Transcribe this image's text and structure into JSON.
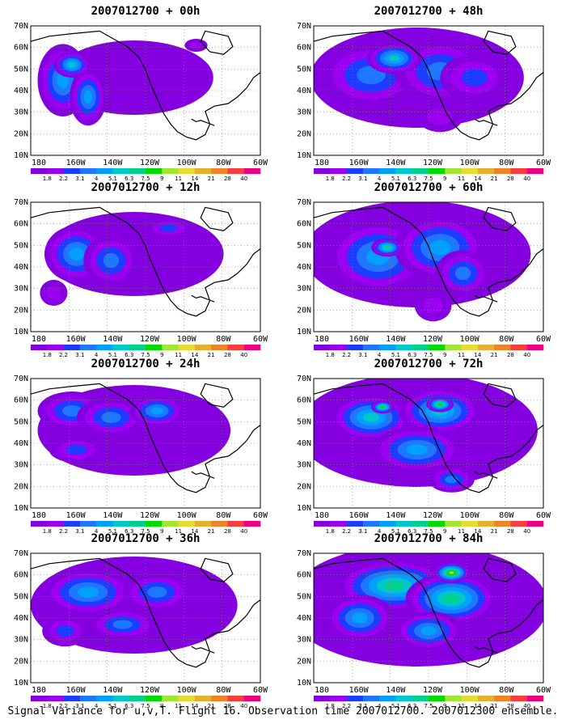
{
  "panels": [
    {
      "title": "2007012700 + 00h",
      "intensity": 0.15,
      "blobs": [
        [
          0.14,
          0.42,
          0.11,
          0.28,
          4
        ],
        [
          0.25,
          0.55,
          0.08,
          0.22,
          4
        ],
        [
          0.18,
          0.3,
          0.08,
          0.1,
          5
        ],
        [
          0.72,
          0.15,
          0.05,
          0.05,
          1
        ],
        [
          0.48,
          0.28,
          0.02,
          0.03,
          1
        ]
      ]
    },
    {
      "title": "2007012700 + 48h",
      "intensity": 0.55,
      "blobs": [
        [
          0.25,
          0.38,
          0.22,
          0.25,
          3
        ],
        [
          0.55,
          0.35,
          0.2,
          0.25,
          3
        ],
        [
          0.35,
          0.25,
          0.12,
          0.12,
          5
        ],
        [
          0.7,
          0.4,
          0.15,
          0.18,
          2
        ],
        [
          0.55,
          0.7,
          0.1,
          0.12,
          1
        ]
      ]
    },
    {
      "title": "2007012700 + 12h",
      "intensity": 0.3,
      "blobs": [
        [
          0.2,
          0.4,
          0.14,
          0.22,
          4
        ],
        [
          0.35,
          0.45,
          0.12,
          0.2,
          3
        ],
        [
          0.6,
          0.2,
          0.1,
          0.08,
          2
        ],
        [
          0.1,
          0.7,
          0.06,
          0.1,
          1
        ]
      ]
    },
    {
      "title": "2007012700 + 60h",
      "intensity": 0.65,
      "blobs": [
        [
          0.28,
          0.42,
          0.22,
          0.28,
          4
        ],
        [
          0.55,
          0.35,
          0.2,
          0.25,
          4
        ],
        [
          0.32,
          0.35,
          0.07,
          0.07,
          6
        ],
        [
          0.65,
          0.55,
          0.12,
          0.18,
          3
        ],
        [
          0.52,
          0.8,
          0.08,
          0.12,
          1
        ]
      ]
    },
    {
      "title": "2007012700 + 24h",
      "intensity": 0.4,
      "blobs": [
        [
          0.18,
          0.25,
          0.15,
          0.15,
          3
        ],
        [
          0.35,
          0.3,
          0.15,
          0.15,
          3
        ],
        [
          0.55,
          0.25,
          0.12,
          0.12,
          4
        ],
        [
          0.2,
          0.55,
          0.12,
          0.1,
          2
        ]
      ]
    },
    {
      "title": "2007012700 + 72h",
      "intensity": 0.75,
      "blobs": [
        [
          0.25,
          0.3,
          0.18,
          0.18,
          5
        ],
        [
          0.55,
          0.25,
          0.18,
          0.18,
          5
        ],
        [
          0.3,
          0.22,
          0.05,
          0.05,
          7
        ],
        [
          0.55,
          0.2,
          0.06,
          0.06,
          7
        ],
        [
          0.45,
          0.55,
          0.2,
          0.18,
          4
        ],
        [
          0.6,
          0.78,
          0.1,
          0.1,
          3
        ]
      ]
    },
    {
      "title": "2007012700 + 36h",
      "intensity": 0.5,
      "blobs": [
        [
          0.25,
          0.3,
          0.2,
          0.18,
          4
        ],
        [
          0.55,
          0.3,
          0.15,
          0.15,
          3
        ],
        [
          0.4,
          0.55,
          0.15,
          0.12,
          3
        ],
        [
          0.15,
          0.6,
          0.1,
          0.12,
          2
        ]
      ]
    },
    {
      "title": "2007012700 + 84h",
      "intensity": 0.9,
      "blobs": [
        [
          0.35,
          0.25,
          0.25,
          0.2,
          6
        ],
        [
          0.6,
          0.35,
          0.2,
          0.2,
          6
        ],
        [
          0.6,
          0.15,
          0.08,
          0.08,
          8
        ],
        [
          0.2,
          0.5,
          0.15,
          0.18,
          4
        ],
        [
          0.5,
          0.6,
          0.15,
          0.15,
          4
        ]
      ]
    }
  ],
  "x_ticks": [
    "180",
    "160W",
    "140W",
    "120W",
    "100W",
    "80W",
    "60W"
  ],
  "y_ticks": [
    "10N",
    "20N",
    "30N",
    "40N",
    "50N",
    "60N",
    "70N"
  ],
  "colorbar": {
    "colors": [
      "#8400e0",
      "#9b00f0",
      "#1e3cff",
      "#1e78ff",
      "#00a0ff",
      "#00c8c8",
      "#00d28c",
      "#00dc00",
      "#a0e632",
      "#e6dc32",
      "#e6af2d",
      "#f08228",
      "#fa3c3c",
      "#f00082"
    ],
    "labels": [
      "1.8",
      "2.2",
      "3.1",
      "4",
      "5.1",
      "6.3",
      "7.5",
      "9",
      "11",
      "14",
      "21",
      "28",
      "40"
    ]
  },
  "footer": "Signal Variance for u,v,T. Flight 16. Observation time 2007012700. 2007012300 ensemble."
}
